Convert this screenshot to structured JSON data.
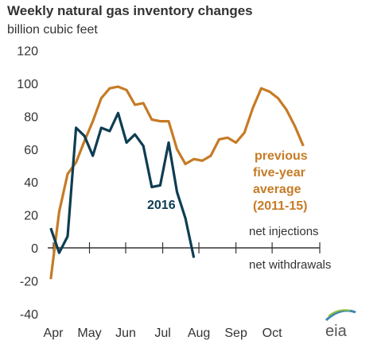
{
  "chart_data": {
    "type": "line",
    "title": "Weekly natural gas inventory changes",
    "ylabel": "billion cubic feet",
    "xlabel": "",
    "ylim": [
      -40,
      120
    ],
    "yticks": [
      120,
      100,
      80,
      60,
      40,
      20,
      0,
      -20,
      -40
    ],
    "xlim": [
      0,
      29
    ],
    "month_labels": [
      "Apr",
      "May",
      "Jun",
      "Jul",
      "Aug",
      "Sep",
      "Oct"
    ],
    "month_positions": [
      0,
      4.3,
      8.6,
      13,
      17.3,
      21.7,
      26
    ],
    "grid": false,
    "zero_line": true,
    "series": [
      {
        "name": "2016",
        "color": "#0e3d52",
        "x": [
          -0.3,
          0.7,
          1.7,
          2.7,
          3.7,
          4.7,
          5.7,
          6.7,
          7.7,
          8.7,
          9.7,
          10.7,
          11.7,
          12.7,
          13.7,
          14.7,
          15.7,
          16.7
        ],
        "values": [
          12,
          -3,
          7,
          73,
          68,
          56,
          73,
          71,
          82,
          64,
          69,
          62,
          37,
          38,
          64,
          34,
          18,
          -6
        ]
      },
      {
        "name": "previous five-year average (2011-15)",
        "color": "#c67b26",
        "x": [
          -0.3,
          0.7,
          1.7,
          2.7,
          3.7,
          4.7,
          5.7,
          6.7,
          7.7,
          8.7,
          9.7,
          10.7,
          11.7,
          12.7,
          13.7,
          14.7,
          15.7,
          16.7,
          17.7,
          18.7,
          19.7,
          20.7,
          21.7,
          22.7,
          23.7,
          24.7,
          25.7,
          26.7,
          27.7,
          28.7,
          29.7
        ],
        "values": [
          -19,
          22,
          45,
          52,
          65,
          77,
          91,
          97,
          98,
          96,
          87,
          88,
          78,
          77,
          77,
          60,
          51,
          54,
          53,
          56,
          66,
          67,
          64,
          70,
          85,
          97,
          95,
          91,
          84,
          74,
          62
        ]
      }
    ],
    "annotations": {
      "label_2016": "2016",
      "label_avg": [
        "previous",
        "five-year",
        "average",
        "(2011-15)"
      ],
      "net_injections": "net injections",
      "net_withdrawals": "net withdrawals"
    },
    "source_logo": "eia"
  }
}
